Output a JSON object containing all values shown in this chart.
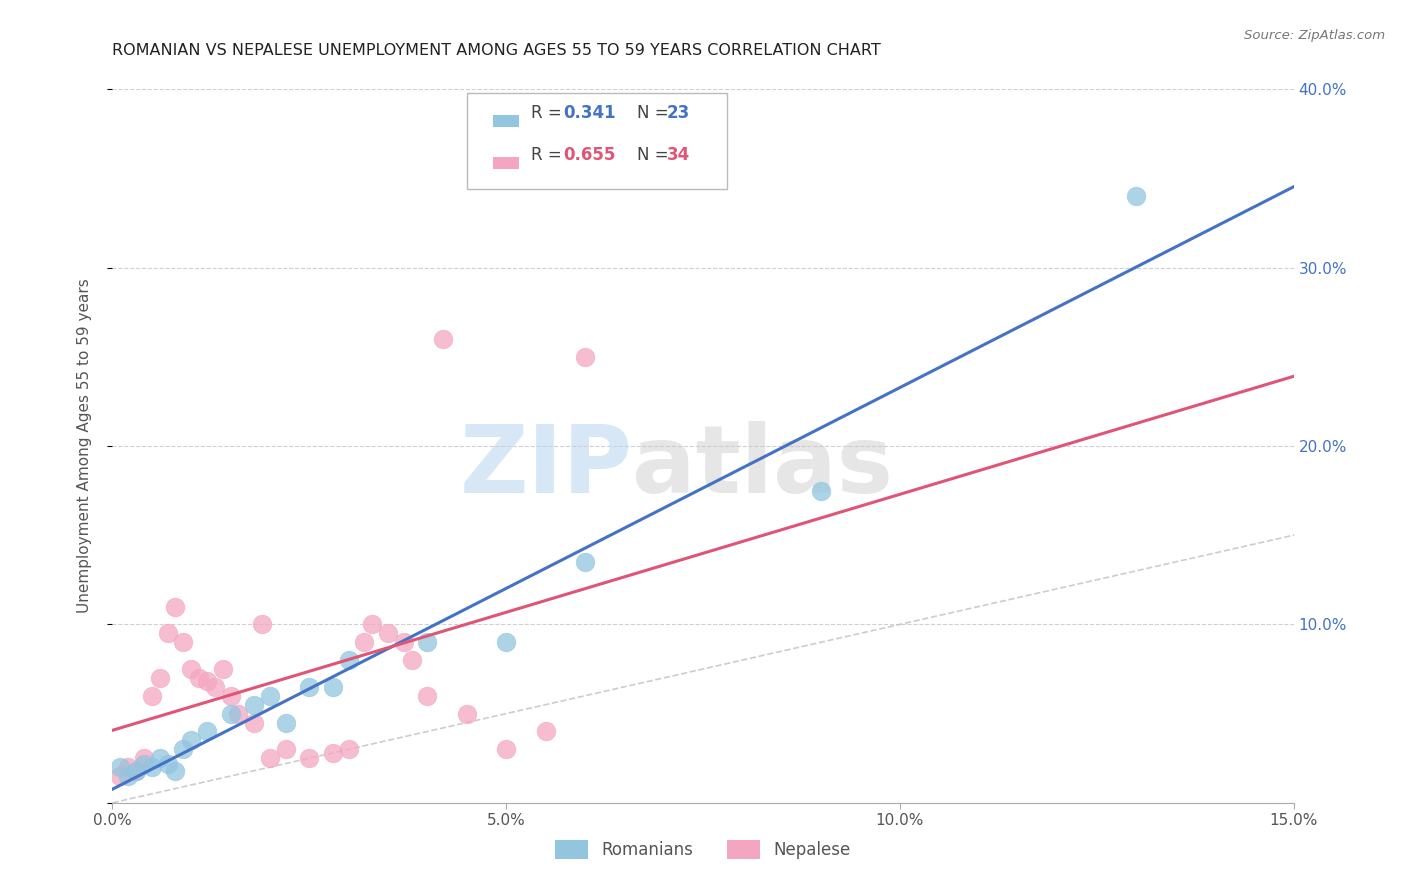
{
  "title": "ROMANIAN VS NEPALESE UNEMPLOYMENT AMONG AGES 55 TO 59 YEARS CORRELATION CHART",
  "source": "Source: ZipAtlas.com",
  "ylabel": "Unemployment Among Ages 55 to 59 years",
  "xlim": [
    0,
    0.15
  ],
  "ylim": [
    0,
    0.4
  ],
  "xticks": [
    0.0,
    0.05,
    0.1,
    0.15
  ],
  "yticks": [
    0.0,
    0.1,
    0.2,
    0.3,
    0.4
  ],
  "xticklabels": [
    "0.0%",
    "5.0%",
    "10.0%",
    "15.0%"
  ],
  "yticklabels_right": [
    "",
    "10.0%",
    "20.0%",
    "30.0%",
    "40.0%"
  ],
  "blue_color": "#92c5de",
  "pink_color": "#f4a6c0",
  "blue_line_color": "#4472c4",
  "pink_line_color": "#e05575",
  "diag_color": "#c0c0c0",
  "legend_blue_label": "Romanians",
  "legend_pink_label": "Nepalese",
  "watermark_zip": "ZIP",
  "watermark_atlas": "atlas",
  "blue_R": "0.341",
  "blue_N": "23",
  "pink_R": "0.655",
  "pink_N": "34",
  "rom_x": [
    0.001,
    0.002,
    0.003,
    0.004,
    0.005,
    0.006,
    0.007,
    0.008,
    0.009,
    0.01,
    0.012,
    0.015,
    0.018,
    0.02,
    0.022,
    0.025,
    0.028,
    0.03,
    0.04,
    0.05,
    0.06,
    0.09,
    0.13
  ],
  "rom_y": [
    0.02,
    0.015,
    0.018,
    0.022,
    0.02,
    0.025,
    0.022,
    0.018,
    0.03,
    0.035,
    0.04,
    0.05,
    0.055,
    0.06,
    0.045,
    0.065,
    0.065,
    0.08,
    0.09,
    0.09,
    0.135,
    0.175,
    0.34
  ],
  "nep_x": [
    0.001,
    0.002,
    0.003,
    0.004,
    0.005,
    0.006,
    0.007,
    0.008,
    0.009,
    0.01,
    0.011,
    0.012,
    0.013,
    0.014,
    0.015,
    0.016,
    0.018,
    0.019,
    0.02,
    0.022,
    0.025,
    0.028,
    0.03,
    0.032,
    0.033,
    0.035,
    0.037,
    0.038,
    0.04,
    0.042,
    0.045,
    0.05,
    0.055,
    0.06
  ],
  "nep_y": [
    0.015,
    0.02,
    0.018,
    0.025,
    0.06,
    0.07,
    0.095,
    0.11,
    0.09,
    0.075,
    0.07,
    0.068,
    0.065,
    0.075,
    0.06,
    0.05,
    0.045,
    0.1,
    0.025,
    0.03,
    0.025,
    0.028,
    0.03,
    0.09,
    0.1,
    0.095,
    0.09,
    0.08,
    0.06,
    0.26,
    0.05,
    0.03,
    0.04,
    0.25
  ]
}
